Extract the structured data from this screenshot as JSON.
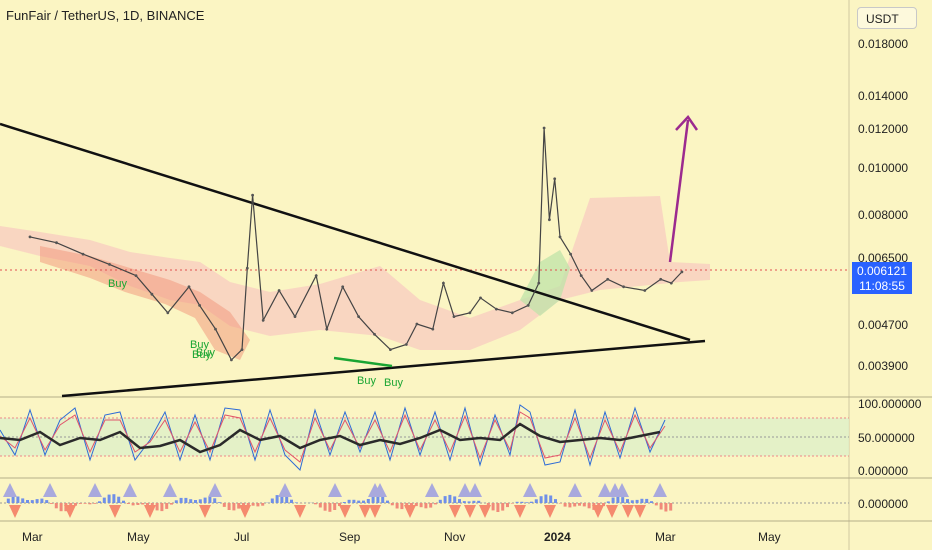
{
  "header": {
    "title": "FunFair / TetherUS, 1D, BINANCE",
    "currency_button": "USDT"
  },
  "price_tag": {
    "price": "0.006121",
    "countdown": "11:08:55"
  },
  "colors": {
    "background": "#fbf5c3",
    "accent": "#2962ff",
    "trendline": "#111111",
    "projection_arrow": "#9c2a8f",
    "buy_signal": "#1aa533",
    "cloud": "#f8c9c0",
    "stoch_k": "#2d6bd6",
    "stoch_d": "#e0556b",
    "rsi": "#2a2a2a"
  },
  "chart_data": {
    "type": "line",
    "title": "FunFair / TetherUS, 1D, BINANCE",
    "xlabel": "",
    "ylabel": "",
    "price_axis_ticks": [
      "0.018000",
      "0.014000",
      "0.012000",
      "0.010000",
      "0.008000",
      "0.006500",
      "0.004700",
      "0.003900"
    ],
    "x_ticks": [
      "Mar",
      "May",
      "Jul",
      "Sep",
      "Nov",
      "2024",
      "Mar",
      "May"
    ],
    "x_tick_positions": [
      0,
      2,
      4,
      6,
      8,
      10,
      12,
      14
    ],
    "series": [
      {
        "values": [
          {
            "t": 0.0,
            "v": 0.0072
          },
          {
            "t": 0.5,
            "v": 0.007
          },
          {
            "t": 1.0,
            "v": 0.0066
          },
          {
            "t": 1.5,
            "v": 0.0063
          },
          {
            "t": 2.0,
            "v": 0.006
          },
          {
            "t": 2.3,
            "v": 0.0055
          },
          {
            "t": 2.6,
            "v": 0.005
          },
          {
            "t": 3.0,
            "v": 0.0057
          },
          {
            "t": 3.2,
            "v": 0.0052
          },
          {
            "t": 3.5,
            "v": 0.0046
          },
          {
            "t": 3.8,
            "v": 0.004
          },
          {
            "t": 4.0,
            "v": 0.0042
          },
          {
            "t": 4.1,
            "v": 0.0062
          },
          {
            "t": 4.2,
            "v": 0.0088
          },
          {
            "t": 4.4,
            "v": 0.0048
          },
          {
            "t": 4.7,
            "v": 0.0056
          },
          {
            "t": 5.0,
            "v": 0.0049
          },
          {
            "t": 5.4,
            "v": 0.006
          },
          {
            "t": 5.6,
            "v": 0.0046
          },
          {
            "t": 5.9,
            "v": 0.0057
          },
          {
            "t": 6.2,
            "v": 0.0049
          },
          {
            "t": 6.5,
            "v": 0.0045
          },
          {
            "t": 6.8,
            "v": 0.0042
          },
          {
            "t": 7.1,
            "v": 0.0043
          },
          {
            "t": 7.3,
            "v": 0.0047
          },
          {
            "t": 7.6,
            "v": 0.0046
          },
          {
            "t": 7.8,
            "v": 0.0058
          },
          {
            "t": 8.0,
            "v": 0.0049
          },
          {
            "t": 8.3,
            "v": 0.005
          },
          {
            "t": 8.5,
            "v": 0.0054
          },
          {
            "t": 8.8,
            "v": 0.0051
          },
          {
            "t": 9.1,
            "v": 0.005
          },
          {
            "t": 9.4,
            "v": 0.0052
          },
          {
            "t": 9.6,
            "v": 0.0058
          },
          {
            "t": 9.7,
            "v": 0.012
          },
          {
            "t": 9.8,
            "v": 0.0078
          },
          {
            "t": 9.9,
            "v": 0.0095
          },
          {
            "t": 10.0,
            "v": 0.0072
          },
          {
            "t": 10.2,
            "v": 0.0066
          },
          {
            "t": 10.4,
            "v": 0.006
          },
          {
            "t": 10.6,
            "v": 0.0056
          },
          {
            "t": 10.9,
            "v": 0.0059
          },
          {
            "t": 11.2,
            "v": 0.0057
          },
          {
            "t": 11.6,
            "v": 0.0056
          },
          {
            "t": 11.9,
            "v": 0.0059
          },
          {
            "t": 12.1,
            "v": 0.0058
          },
          {
            "t": 12.3,
            "v": 0.0061
          }
        ]
      }
    ],
    "annotations": [
      "Buy",
      "Buy",
      "Buy",
      "Buy",
      "Buy",
      "Buy"
    ],
    "indicator_axis_ticks": [
      "100.000000",
      "50.000000",
      "0.000000"
    ],
    "histogram_axis_ticks": [
      "0.000000"
    ]
  }
}
